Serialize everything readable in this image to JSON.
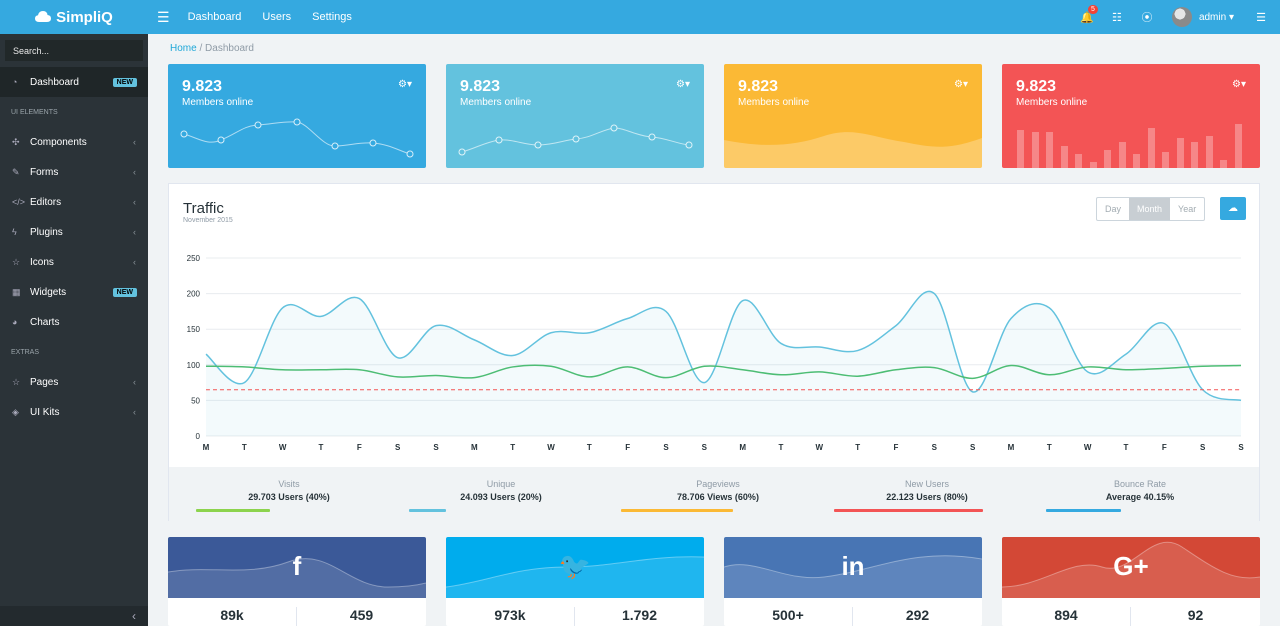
{
  "header": {
    "brand": "SimpliQ",
    "nav": [
      "Dashboard",
      "Users",
      "Settings"
    ],
    "notification_count": "5",
    "user": "admin"
  },
  "sidebar": {
    "search_placeholder": "Search...",
    "items": [
      {
        "label": "Dashboard",
        "badge": "NEW",
        "active": true,
        "icon": "gauge-icon"
      },
      {
        "section": "UI ELEMENTS"
      },
      {
        "label": "Components",
        "icon": "puzzle-icon",
        "chevron": true
      },
      {
        "label": "Forms",
        "icon": "edit-icon",
        "chevron": true
      },
      {
        "label": "Editors",
        "icon": "code-icon",
        "chevron": true
      },
      {
        "label": "Plugins",
        "icon": "bolt-icon",
        "chevron": true
      },
      {
        "label": "Icons",
        "icon": "star-icon",
        "chevron": true
      },
      {
        "label": "Widgets",
        "icon": "calculator-icon",
        "badge": "NEW"
      },
      {
        "label": "Charts",
        "icon": "pie-chart-icon"
      },
      {
        "section": "EXTRAS"
      },
      {
        "label": "Pages",
        "icon": "star-icon",
        "chevron": true
      },
      {
        "label": "UI Kits",
        "icon": "layers-icon",
        "chevron": true
      }
    ]
  },
  "breadcrumb": {
    "home": "Home",
    "current": "Dashboard"
  },
  "stat_cards": [
    {
      "value": "9.823",
      "label": "Members online",
      "color": "#35a9e0",
      "chart": "line"
    },
    {
      "value": "9.823",
      "label": "Members online",
      "color": "#63c2de",
      "chart": "line"
    },
    {
      "value": "9.823",
      "label": "Members online",
      "color": "#fbb935",
      "chart": "area"
    },
    {
      "value": "9.823",
      "label": "Members online",
      "color": "#f35455",
      "chart": "bar"
    }
  ],
  "traffic": {
    "title": "Traffic",
    "subtitle": "November 2015",
    "buttons": [
      "Day",
      "Month",
      "Year"
    ],
    "active_button": "Month"
  },
  "chart_data": {
    "type": "line",
    "x": [
      "M",
      "T",
      "W",
      "T",
      "F",
      "S",
      "S",
      "M",
      "T",
      "W",
      "T",
      "F",
      "S",
      "S",
      "M",
      "T",
      "W",
      "T",
      "F",
      "S",
      "S",
      "M",
      "T",
      "W",
      "T",
      "F",
      "S",
      "S"
    ],
    "ylim": [
      0,
      250
    ],
    "yticks": [
      "0",
      "50",
      "100",
      "150",
      "200",
      "250"
    ],
    "grid": true,
    "series": [
      {
        "values": [
          115,
          75,
          180,
          168,
          193,
          110,
          155,
          135,
          113,
          145,
          145,
          165,
          175,
          75,
          190,
          130,
          125,
          120,
          155,
          200,
          62,
          165,
          180,
          90,
          115,
          158,
          65,
          50
        ],
        "color": "#63c2de",
        "fill": true
      },
      {
        "values": [
          98,
          97,
          93,
          93,
          93,
          83,
          85,
          82,
          97,
          98,
          83,
          97,
          82,
          98,
          93,
          86,
          90,
          84,
          93,
          96,
          81,
          99,
          86,
          97,
          93,
          95,
          98,
          99
        ],
        "color": "#4dbd74"
      },
      {
        "values": [
          65,
          65,
          65,
          65,
          65,
          65,
          65,
          65,
          65,
          65,
          65,
          65,
          65,
          65,
          65,
          65,
          65,
          65,
          65,
          65,
          65,
          65,
          65,
          65,
          65,
          65,
          65,
          65
        ],
        "color": "#f35455",
        "dashed": true
      }
    ]
  },
  "traffic_stats": [
    {
      "label": "Visits",
      "value": "29.703 Users (40%)",
      "color": "#8cd34d"
    },
    {
      "label": "Unique",
      "value": "24.093 Users (20%)",
      "color": "#63c2de"
    },
    {
      "label": "Pageviews",
      "value": "78.706 Views (60%)",
      "color": "#fbb935"
    },
    {
      "label": "New Users",
      "value": "22.123 Users (80%)",
      "color": "#f35455"
    },
    {
      "label": "Bounce Rate",
      "value": "Average 40.15%",
      "color": "#35a9e0"
    }
  ],
  "social": [
    {
      "network": "facebook",
      "logo": "f",
      "n1": "89k",
      "n2": "459",
      "color": "#3b5998"
    },
    {
      "network": "twitter",
      "logo": "🐦",
      "n1": "973k",
      "n2": "1.792",
      "color": "#00aced"
    },
    {
      "network": "linkedin",
      "logo": "in",
      "n1": "500+",
      "n2": "292",
      "color": "#4875b4"
    },
    {
      "network": "google-plus",
      "logo": "G+",
      "n1": "894",
      "n2": "92",
      "color": "#d34836"
    }
  ]
}
